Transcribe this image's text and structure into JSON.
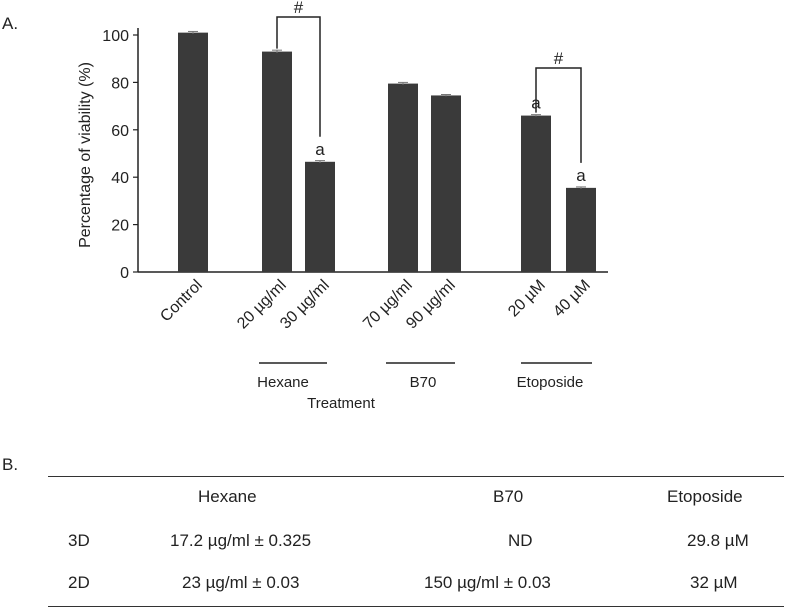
{
  "panel_a_label": "A.",
  "panel_b_label": "B.",
  "colors": {
    "bar": "#3a3a3a",
    "axis": "#222222",
    "text": "#222222"
  },
  "chart_data": {
    "type": "bar",
    "ylabel": "Percentage of viability (%)",
    "xlabel": "Treatment",
    "ylim": [
      0,
      100
    ],
    "yticks": [
      0,
      20,
      40,
      60,
      80,
      100
    ],
    "categories": [
      "Control",
      "20 µg/ml",
      "30 µg/ml",
      "70 µg/ml",
      "90 µg/ml",
      "20 µM",
      "40 µM"
    ],
    "values": [
      101,
      93,
      46.5,
      79.5,
      74.5,
      66,
      35.5
    ],
    "errors": [
      0.5,
      0.6,
      0.5,
      0.5,
      0.4,
      0.4,
      0.4
    ],
    "bar_annotations": [
      "",
      "",
      "a",
      "",
      "",
      "a",
      "a"
    ],
    "groups": [
      {
        "name": "Hexane",
        "members": [
          1,
          2
        ]
      },
      {
        "name": "B70",
        "members": [
          3,
          4
        ]
      },
      {
        "name": "Etoposide",
        "members": [
          5,
          6
        ]
      }
    ],
    "comparisons": [
      {
        "from": 1,
        "to": 2,
        "label": "#"
      },
      {
        "from": 5,
        "to": 6,
        "label": "#"
      }
    ]
  },
  "table": {
    "headers": [
      "",
      "Hexane",
      "B70",
      "Etoposide"
    ],
    "rows": [
      [
        "3D",
        "17.2 µg/ml ± 0.325",
        "ND",
        "29.8 µM"
      ],
      [
        "2D",
        "23 µg/ml ± 0.03",
        "150 µg/ml ± 0.03",
        "32 µM"
      ]
    ]
  }
}
